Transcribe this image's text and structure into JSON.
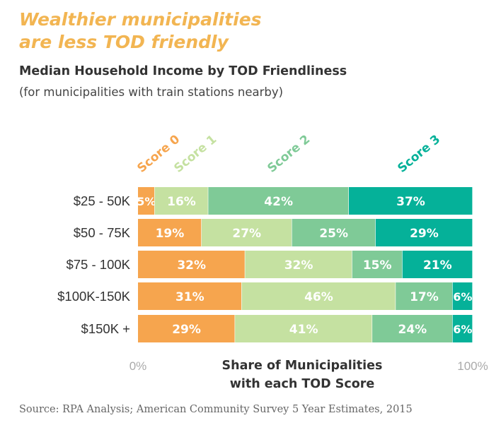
{
  "headline": [
    "Wealthier municipalities",
    "are less TOD friendly"
  ],
  "title": "Median Household Income by TOD Friendliness",
  "subtitle": "(for municipalities with train stations nearby)",
  "source": "Source: RPA Analysis; American Community Survey 5 Year Estimates, 2015",
  "chart_data": {
    "type": "bar",
    "orientation": "horizontal",
    "stacked": true,
    "categories": [
      "$25 - 50K",
      "$50 - 75K",
      "$75 - 100K",
      "$100K-150K",
      "$150K +"
    ],
    "series": [
      {
        "name": "Score 0",
        "color": "#f6a54e",
        "values": [
          5,
          19,
          32,
          31,
          29
        ],
        "labels": [
          "5%",
          "19%",
          "32%",
          "31%",
          "29%"
        ]
      },
      {
        "name": "Score 1",
        "color": "#c5e1a1",
        "values": [
          16,
          27,
          32,
          46,
          41
        ],
        "labels": [
          "16%",
          "27%",
          "32%",
          "46%",
          "41%"
        ]
      },
      {
        "name": "Score 2",
        "color": "#7fca97",
        "values": [
          42,
          25,
          15,
          17,
          24
        ],
        "labels": [
          "42%",
          "25%",
          "15%",
          "17%",
          "24%"
        ]
      },
      {
        "name": "Score 3",
        "color": "#05b199",
        "values": [
          37,
          29,
          21,
          6,
          6
        ],
        "labels": [
          "37%",
          "29%",
          "21%",
          "6%",
          "6%"
        ]
      }
    ],
    "xlim": [
      0,
      100
    ],
    "x_tick_labels": [
      "0%",
      "100%"
    ],
    "xlabel": [
      "Share of Municipalities",
      "with each TOD Score"
    ],
    "legend_placement": "top, rotated labels above each segment",
    "grid": false
  }
}
